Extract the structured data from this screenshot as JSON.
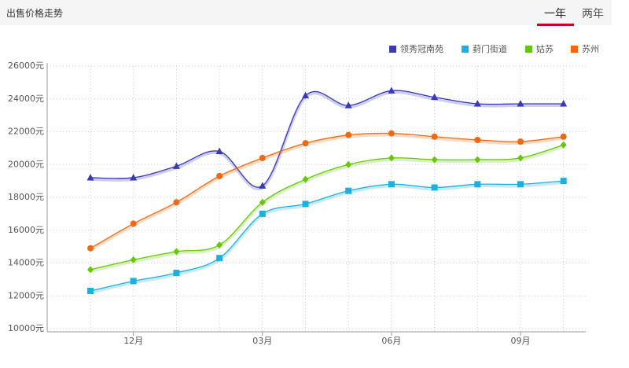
{
  "header": {
    "title": "出售价格走势",
    "tabs": [
      "一年",
      "两年"
    ]
  },
  "chart_data": {
    "type": "line",
    "smooth": true,
    "grid": true,
    "legend": "top-right",
    "categories": [
      null,
      "12月",
      null,
      null,
      "03月",
      null,
      null,
      "06月",
      null,
      null,
      "09月",
      null
    ],
    "ylim": [
      10000,
      26000
    ],
    "yticks": [
      {
        "value": 10000,
        "label": "10000元"
      },
      {
        "value": 12000,
        "label": "12000元"
      },
      {
        "value": 14000,
        "label": "14000元"
      },
      {
        "value": 16000,
        "label": "16000元"
      },
      {
        "value": 18000,
        "label": "18000元"
      },
      {
        "value": 20000,
        "label": "20000元"
      },
      {
        "value": 22000,
        "label": "22000元"
      },
      {
        "value": 24000,
        "label": "24000元"
      },
      {
        "value": 26000,
        "label": "26000元"
      }
    ],
    "series": [
      {
        "name": "领秀冠南苑",
        "color": "#3a3ab8",
        "marker": "triangle",
        "values": [
          19200,
          19200,
          19900,
          20800,
          18700,
          24200,
          23600,
          24500,
          24100,
          23700,
          23700,
          23700
        ]
      },
      {
        "name": "葑门街道",
        "color": "#1ab0e0",
        "marker": "square",
        "values": [
          12300,
          12900,
          13400,
          14300,
          17000,
          17600,
          18400,
          18800,
          18600,
          18800,
          18800,
          19000
        ]
      },
      {
        "name": "姑苏",
        "color": "#66c60a",
        "marker": "diamond",
        "values": [
          13600,
          14200,
          14700,
          15100,
          17700,
          19100,
          20000,
          20400,
          20300,
          20300,
          20400,
          21200
        ]
      },
      {
        "name": "苏州",
        "color": "#ee6a12",
        "marker": "circle",
        "values": [
          14900,
          16400,
          17700,
          19300,
          20400,
          21300,
          21800,
          21900,
          21700,
          21500,
          21400,
          21700
        ]
      }
    ]
  }
}
